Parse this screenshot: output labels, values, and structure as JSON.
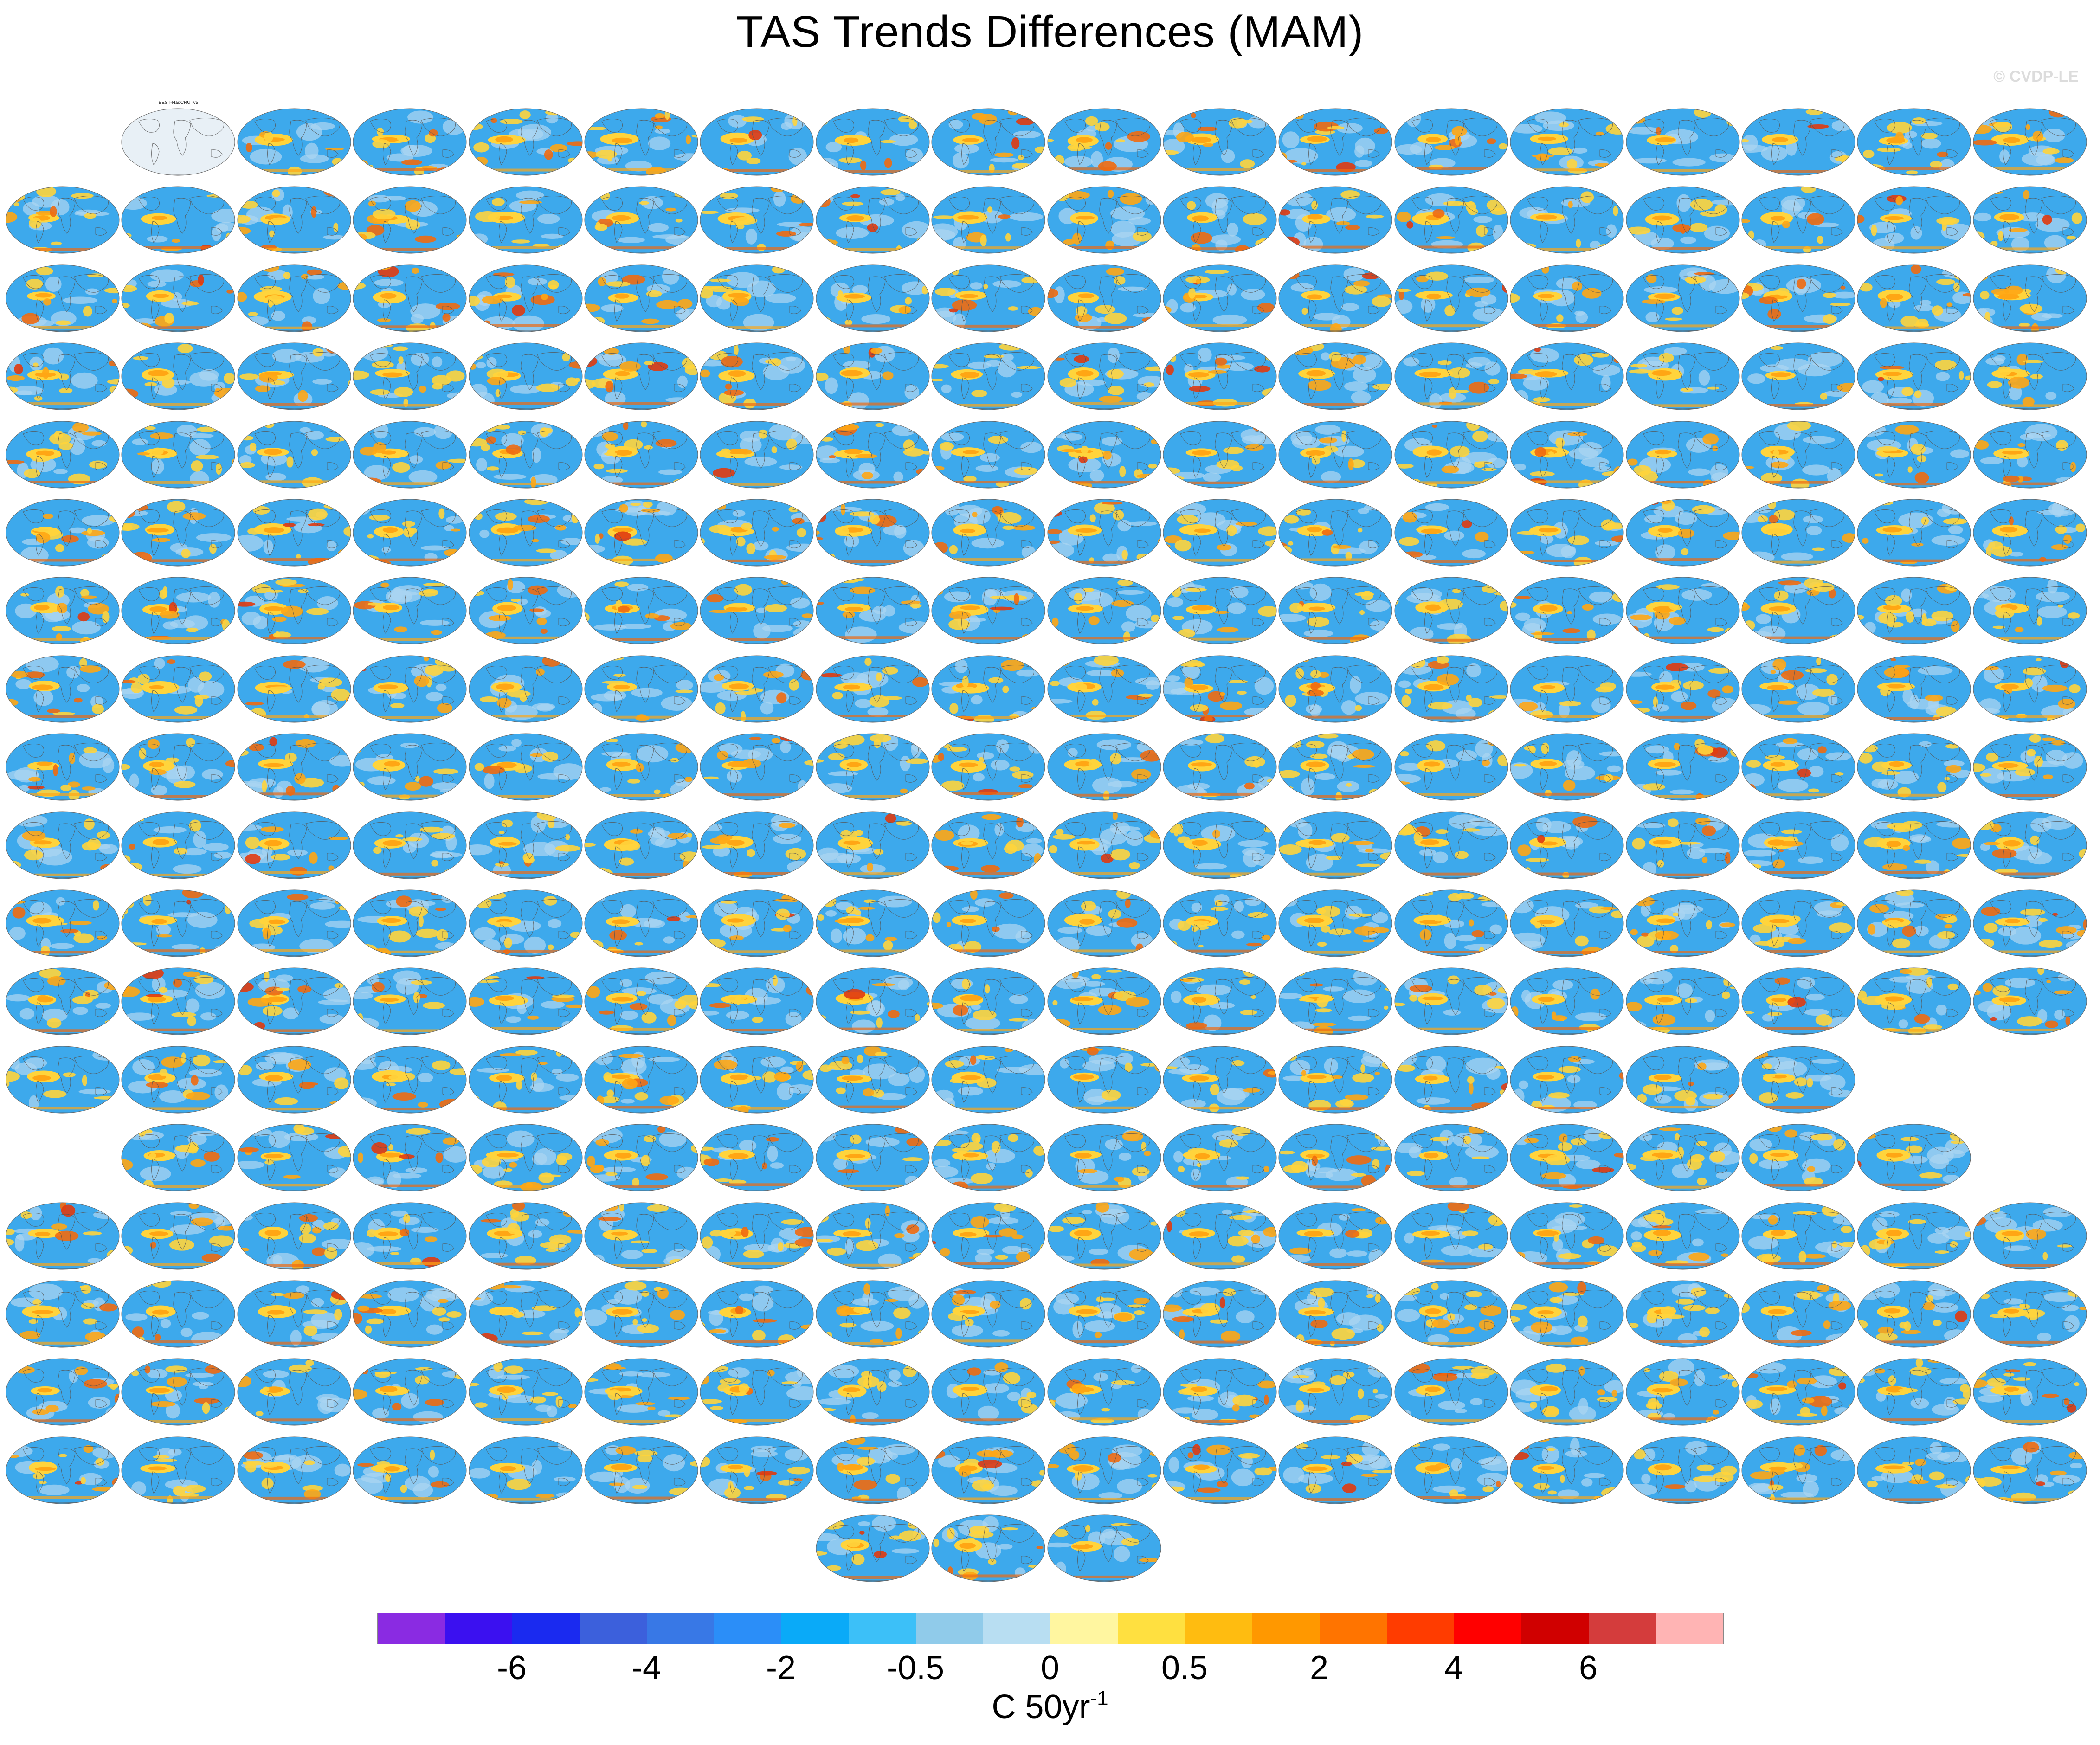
{
  "title": "TAS Trends Differences (MAM)",
  "watermark": "© CVDP-LE",
  "colorbar": {
    "colors": [
      "#8a2be2",
      "#3b10f0",
      "#1a2af0",
      "#3c60dc",
      "#3878e6",
      "#2b8ef8",
      "#0aaaf8",
      "#3cc0f8",
      "#90cbea",
      "#b8def2",
      "#fff6a0",
      "#ffe040",
      "#ffbc10",
      "#ff9800",
      "#ff7400",
      "#ff3c00",
      "#ff0000",
      "#d00000",
      "#d43c3c",
      "#ffb4b4"
    ],
    "tick_labels": [
      "-6",
      "-4",
      "-2",
      "-0.5",
      "0",
      "0.5",
      "2",
      "4",
      "6"
    ],
    "units": "C 50yr",
    "units_sup": "-1"
  },
  "panels": {
    "first_label": "BEST-HadCRUTv5",
    "first_style": "obs",
    "row_counts": [
      17,
      18,
      18,
      18,
      18,
      18,
      18,
      18,
      18,
      18,
      18,
      18,
      16,
      16,
      18,
      18,
      18,
      18,
      3
    ],
    "row_first_col": [
      1,
      0,
      0,
      0,
      0,
      0,
      0,
      0,
      0,
      0,
      0,
      0,
      0,
      1,
      0,
      0,
      0,
      0,
      7
    ],
    "palette": {
      "ocean": "#3da9ec",
      "light": "#a9d4f2",
      "warm": [
        "#ffd43c",
        "#ffa614",
        "#f06a10",
        "#e03a10"
      ],
      "cool": "#7fc4f0",
      "obs_bg": "#e8f0f6",
      "coast": "#555555"
    }
  }
}
